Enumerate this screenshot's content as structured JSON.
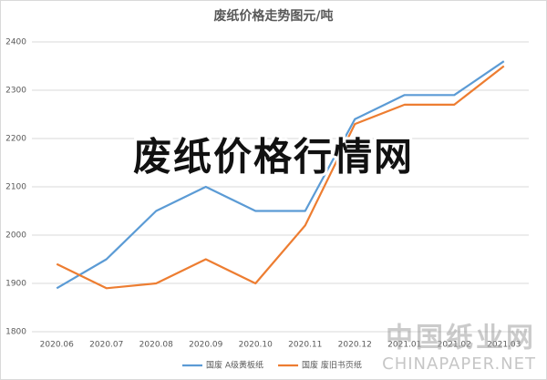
{
  "chart_data": {
    "type": "line",
    "title": "废纸价格走势图元/吨",
    "categories": [
      "2020.06",
      "2020.07",
      "2020.08",
      "2020.09",
      "2020.10",
      "2020.11",
      "2020.12",
      "2021.01",
      "2021.02",
      "2021.03"
    ],
    "series": [
      {
        "name": "国废 A级黄板纸",
        "color": "#5b9bd5",
        "values": [
          1890,
          1950,
          2050,
          2100,
          2050,
          2050,
          2240,
          2290,
          2290,
          2360
        ]
      },
      {
        "name": "国废 废旧书页纸",
        "color": "#ed7d31",
        "values": [
          1940,
          1890,
          1900,
          1950,
          1900,
          2020,
          2230,
          2270,
          2270,
          2350
        ]
      }
    ],
    "ylim": [
      1800,
      2400
    ],
    "yticks": [
      1800,
      1900,
      2000,
      2100,
      2200,
      2300,
      2400
    ],
    "grid": true,
    "legend": "bottom",
    "annotations": [
      "废纸价格行情网",
      "中国纸业网",
      "CHINAPAPER.NET"
    ]
  }
}
